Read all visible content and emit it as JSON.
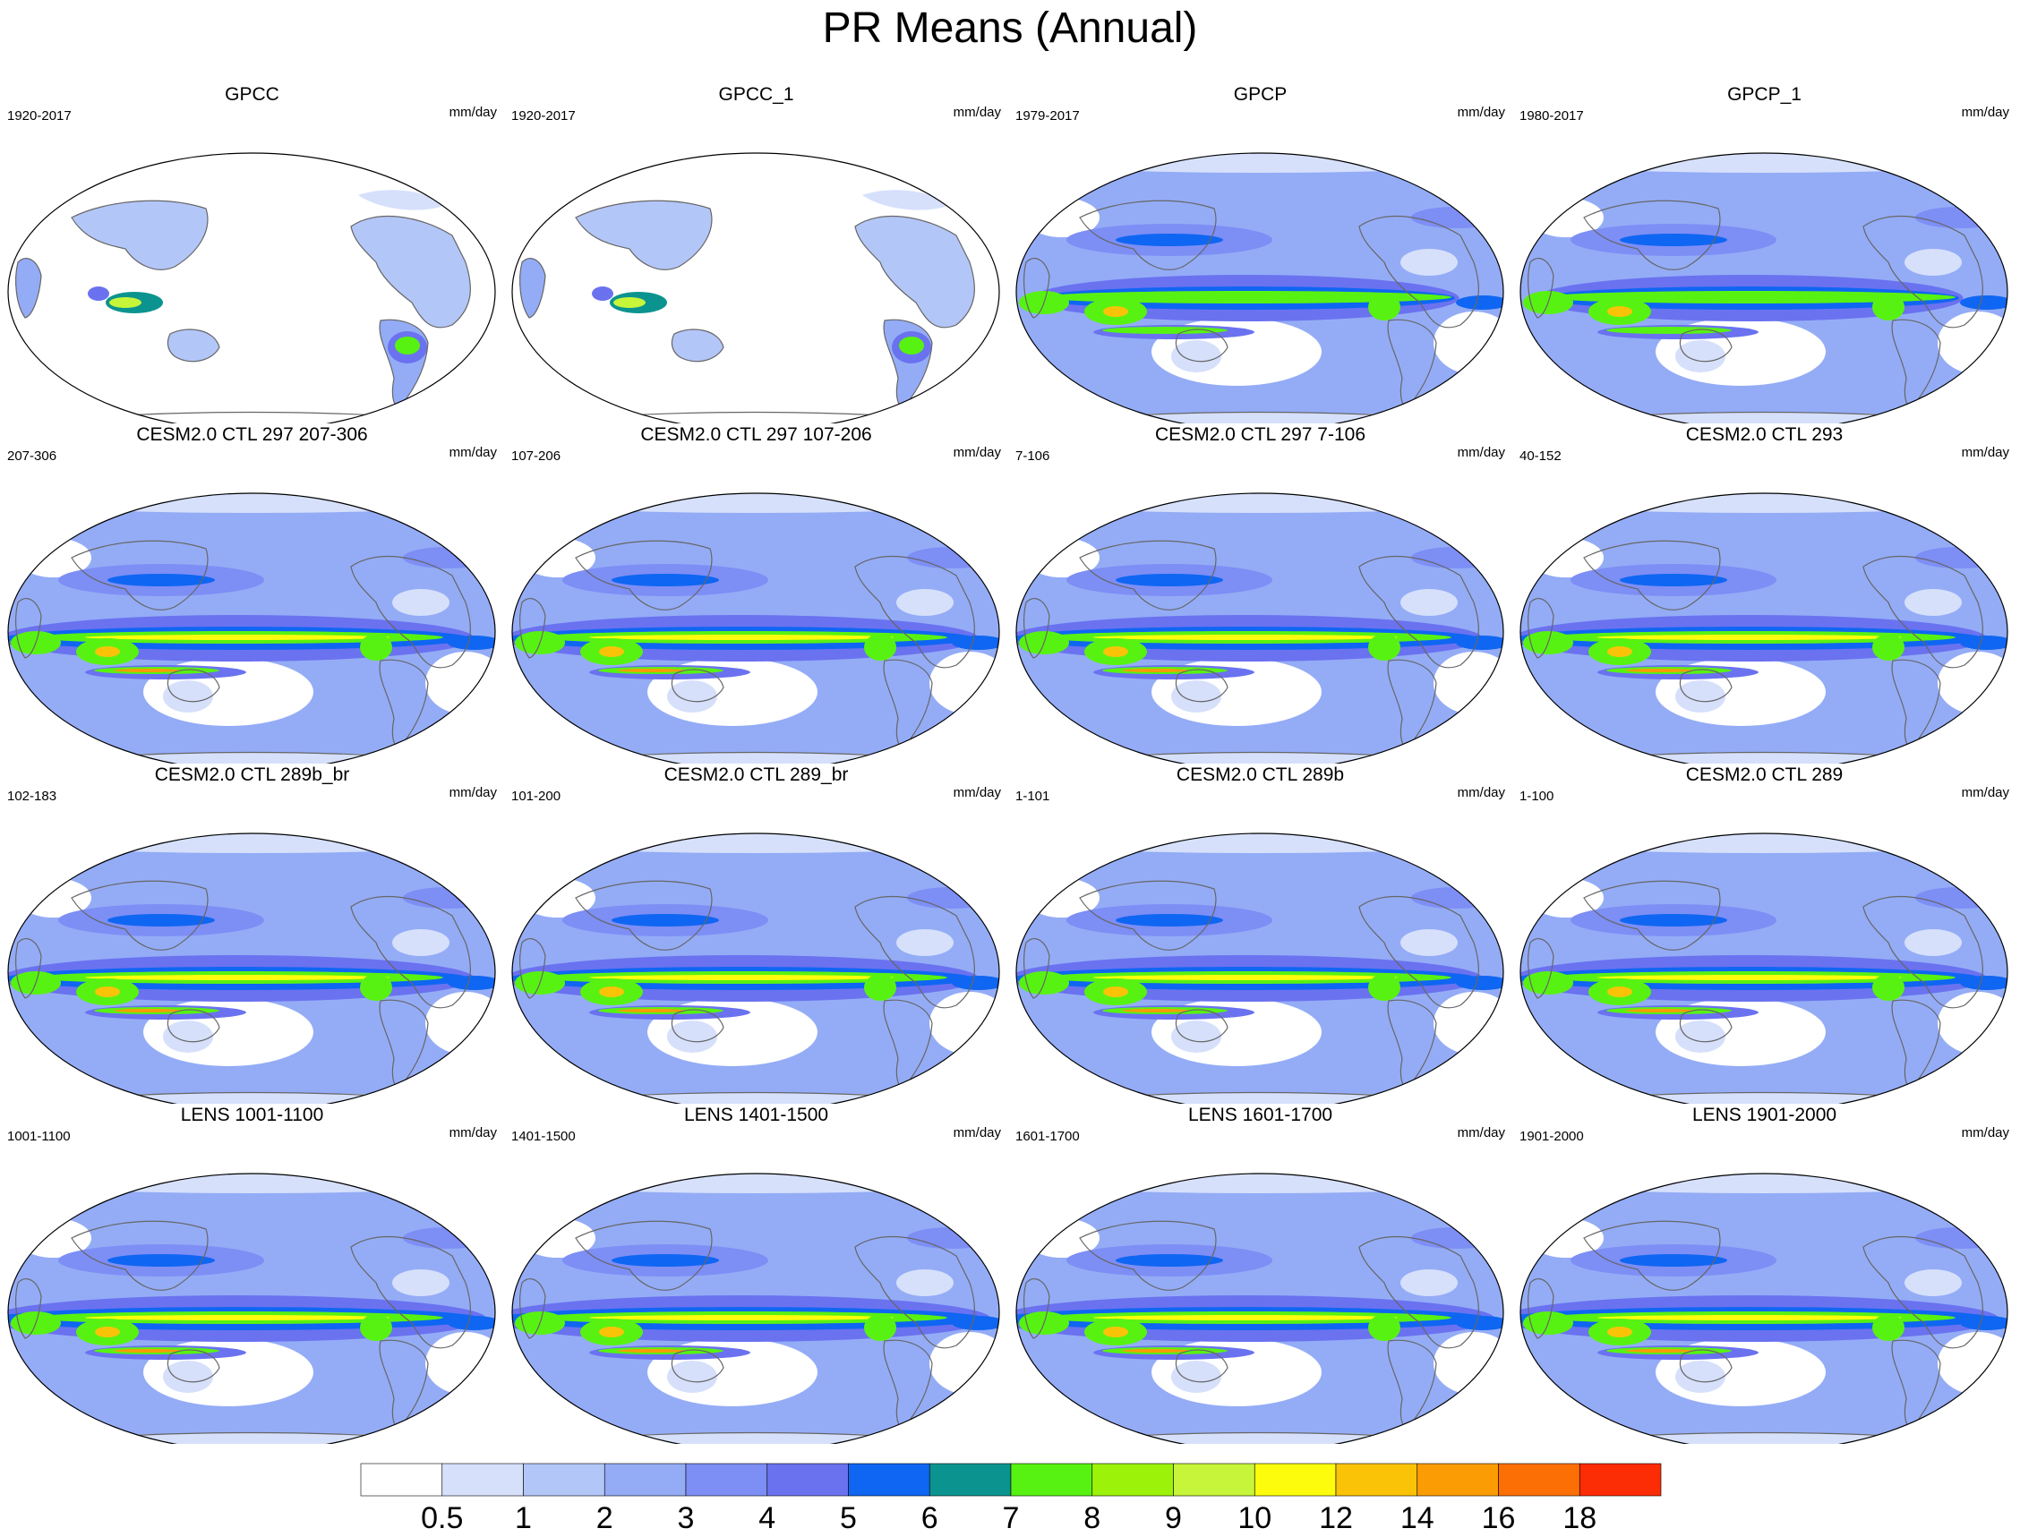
{
  "title": "PR Means (Annual)",
  "units": "mm/day",
  "colorbar": {
    "labels": [
      "0.5",
      "1",
      "2",
      "3",
      "4",
      "5",
      "6",
      "7",
      "8",
      "9",
      "10",
      "12",
      "14",
      "16",
      "18"
    ],
    "colors": [
      "#ffffff",
      "#d6e0fb",
      "#b3c6f8",
      "#94acf6",
      "#7d8ef5",
      "#6a72f0",
      "#0f66f2",
      "#0b948f",
      "#58f212",
      "#9df20a",
      "#c6f53a",
      "#fcfc0c",
      "#fbc307",
      "#fb9c05",
      "#fb6f05",
      "#fc2c05"
    ]
  },
  "panels": [
    {
      "title": "GPCC",
      "period": "1920-2017",
      "units": "mm/day",
      "style": "gpcc"
    },
    {
      "title": "GPCC_1",
      "period": "1920-2017",
      "units": "mm/day",
      "style": "gpcc"
    },
    {
      "title": "GPCP",
      "period": "1979-2017",
      "units": "mm/day",
      "style": "gpcp"
    },
    {
      "title": "GPCP_1",
      "period": "1980-2017",
      "units": "mm/day",
      "style": "gpcp"
    },
    {
      "title": "CESM2.0 CTL 297 207-306",
      "period": "207-306",
      "units": "mm/day",
      "style": "model"
    },
    {
      "title": "CESM2.0 CTL 297 107-206",
      "period": "107-206",
      "units": "mm/day",
      "style": "model"
    },
    {
      "title": "CESM2.0 CTL 297 7-106",
      "period": "7-106",
      "units": "mm/day",
      "style": "model"
    },
    {
      "title": "CESM2.0 CTL 293",
      "period": "40-152",
      "units": "mm/day",
      "style": "model"
    },
    {
      "title": "CESM2.0 CTL 289b_br",
      "period": "102-183",
      "units": "mm/day",
      "style": "model"
    },
    {
      "title": "CESM2.0 CTL 289_br",
      "period": "101-200",
      "units": "mm/day",
      "style": "model"
    },
    {
      "title": "CESM2.0 CTL 289b",
      "period": "1-101",
      "units": "mm/day",
      "style": "model"
    },
    {
      "title": "CESM2.0 CTL 289",
      "period": "1-100",
      "units": "mm/day",
      "style": "model"
    },
    {
      "title": "LENS 1001-1100",
      "period": "1001-1100",
      "units": "mm/day",
      "style": "lens"
    },
    {
      "title": "LENS 1401-1500",
      "period": "1401-1500",
      "units": "mm/day",
      "style": "lens"
    },
    {
      "title": "LENS 1601-1700",
      "period": "1601-1700",
      "units": "mm/day",
      "style": "lens"
    },
    {
      "title": "LENS 1901-2000",
      "period": "1901-2000",
      "units": "mm/day",
      "style": "lens"
    }
  ]
}
